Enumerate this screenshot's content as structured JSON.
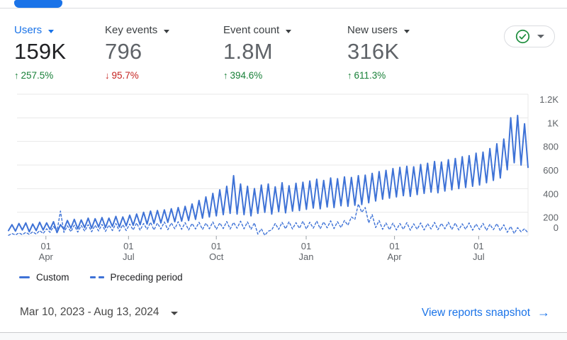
{
  "header": {
    "active_tab_indicator_color": "#1a73e8"
  },
  "metrics": [
    {
      "label": "Users",
      "value": "159K",
      "change": "257.5%",
      "direction": "up",
      "selected": true
    },
    {
      "label": "Key events",
      "value": "796",
      "change": "95.7%",
      "direction": "down",
      "selected": false
    },
    {
      "label": "Event count",
      "value": "1.8M",
      "change": "394.6%",
      "direction": "up",
      "selected": false
    },
    {
      "label": "New users",
      "value": "316K",
      "change": "611.3%",
      "direction": "up",
      "selected": false
    }
  ],
  "scorecard_button": {
    "icon": "check-circle-icon",
    "has_caret": true,
    "check_color": "#1e8e3e"
  },
  "colors": {
    "positive": "#188038",
    "negative": "#c5221f",
    "link": "#1a73e8",
    "accent": "#1a73e8"
  },
  "chart_data": {
    "type": "line",
    "title": "",
    "xlabel": "",
    "ylabel": "",
    "y_max": 1200,
    "y_min": 0,
    "grid": true,
    "legend_position": "bottom-left",
    "line_color": "#3e72d6",
    "grid_color": "#e8e8e8",
    "tick_color": "#9aa0a6",
    "axis_text_color": "#5f6368",
    "y_ticks": [
      "1.2K",
      "1K",
      "800",
      "600",
      "400",
      "200",
      "0"
    ],
    "x_ticks": [
      {
        "line1": "01",
        "line2": "Apr",
        "frac": 0.072
      },
      {
        "line1": "01",
        "line2": "Jul",
        "frac": 0.231
      },
      {
        "line1": "01",
        "line2": "Oct",
        "frac": 0.4
      },
      {
        "line1": "01",
        "line2": "Jan",
        "frac": 0.573
      },
      {
        "line1": "01",
        "line2": "Apr",
        "frac": 0.743
      },
      {
        "line1": "01",
        "line2": "Jul",
        "frac": 0.905
      }
    ],
    "series": [
      {
        "name": "Custom",
        "style": "solid",
        "values": [
          45,
          95,
          40,
          105,
          50,
          110,
          35,
          100,
          45,
          115,
          50,
          110,
          55,
          120,
          28,
          95,
          55,
          130,
          65,
          140,
          60,
          135,
          70,
          150,
          65,
          145,
          75,
          155,
          70,
          150,
          80,
          165,
          75,
          160,
          85,
          175,
          90,
          185,
          95,
          200,
          100,
          210,
          105,
          215,
          110,
          220,
          115,
          230,
          120,
          240,
          125,
          250,
          130,
          270,
          140,
          300,
          150,
          330,
          160,
          360,
          170,
          390,
          180,
          420,
          190,
          510,
          185,
          440,
          180,
          420,
          170,
          400,
          190,
          430,
          200,
          440,
          185,
          415,
          205,
          450,
          195,
          425,
          210,
          445,
          215,
          455,
          225,
          465,
          235,
          480,
          230,
          470,
          245,
          490,
          240,
          485,
          255,
          500,
          250,
          495,
          260,
          510,
          265,
          515,
          280,
          530,
          295,
          545,
          310,
          555,
          320,
          570,
          330,
          580,
          340,
          590,
          335,
          585,
          350,
          605,
          360,
          615,
          370,
          630,
          365,
          625,
          380,
          645,
          390,
          655,
          400,
          670,
          410,
          680,
          420,
          700,
          430,
          710,
          450,
          740,
          470,
          780,
          490,
          820,
          560,
          1000,
          620,
          1020,
          600,
          950,
          580
        ]
      },
      {
        "name": "Preceding period",
        "style": "dashed",
        "values": [
          5,
          20,
          8,
          25,
          10,
          30,
          12,
          35,
          15,
          45,
          20,
          60,
          30,
          80,
          38,
          210,
          30,
          85,
          35,
          90,
          32,
          88,
          40,
          95,
          35,
          90,
          42,
          98,
          38,
          92,
          45,
          105,
          40,
          95,
          45,
          100,
          50,
          110,
          48,
          105,
          55,
          115,
          50,
          108,
          58,
          118,
          52,
          110,
          60,
          120,
          55,
          112,
          50,
          105,
          58,
          115,
          54,
          108,
          60,
          118,
          55,
          110,
          62,
          122,
          58,
          114,
          65,
          125,
          60,
          118,
          55,
          110,
          15,
          60,
          5,
          40,
          50,
          105,
          55,
          115,
          60,
          120,
          58,
          112,
          64,
          124,
          58,
          116,
          65,
          126,
          60,
          118,
          68,
          128,
          62,
          120,
          70,
          130,
          90,
          160,
          140,
          270,
          200,
          240,
          110,
          180,
          70,
          130,
          55,
          110,
          52,
          108,
          50,
          105,
          55,
          112,
          48,
          102,
          56,
          110,
          50,
          104,
          58,
          114,
          52,
          106,
          60,
          115,
          54,
          108,
          50,
          102,
          56,
          110,
          48,
          100,
          54,
          106,
          46,
          98,
          52,
          104,
          44,
          94,
          30,
          80,
          20,
          70,
          35,
          60,
          25
        ]
      }
    ]
  },
  "footer": {
    "date_range": "Mar 10, 2023 - Aug 13, 2024",
    "link_label": "View reports snapshot",
    "link_arrow": "→"
  }
}
